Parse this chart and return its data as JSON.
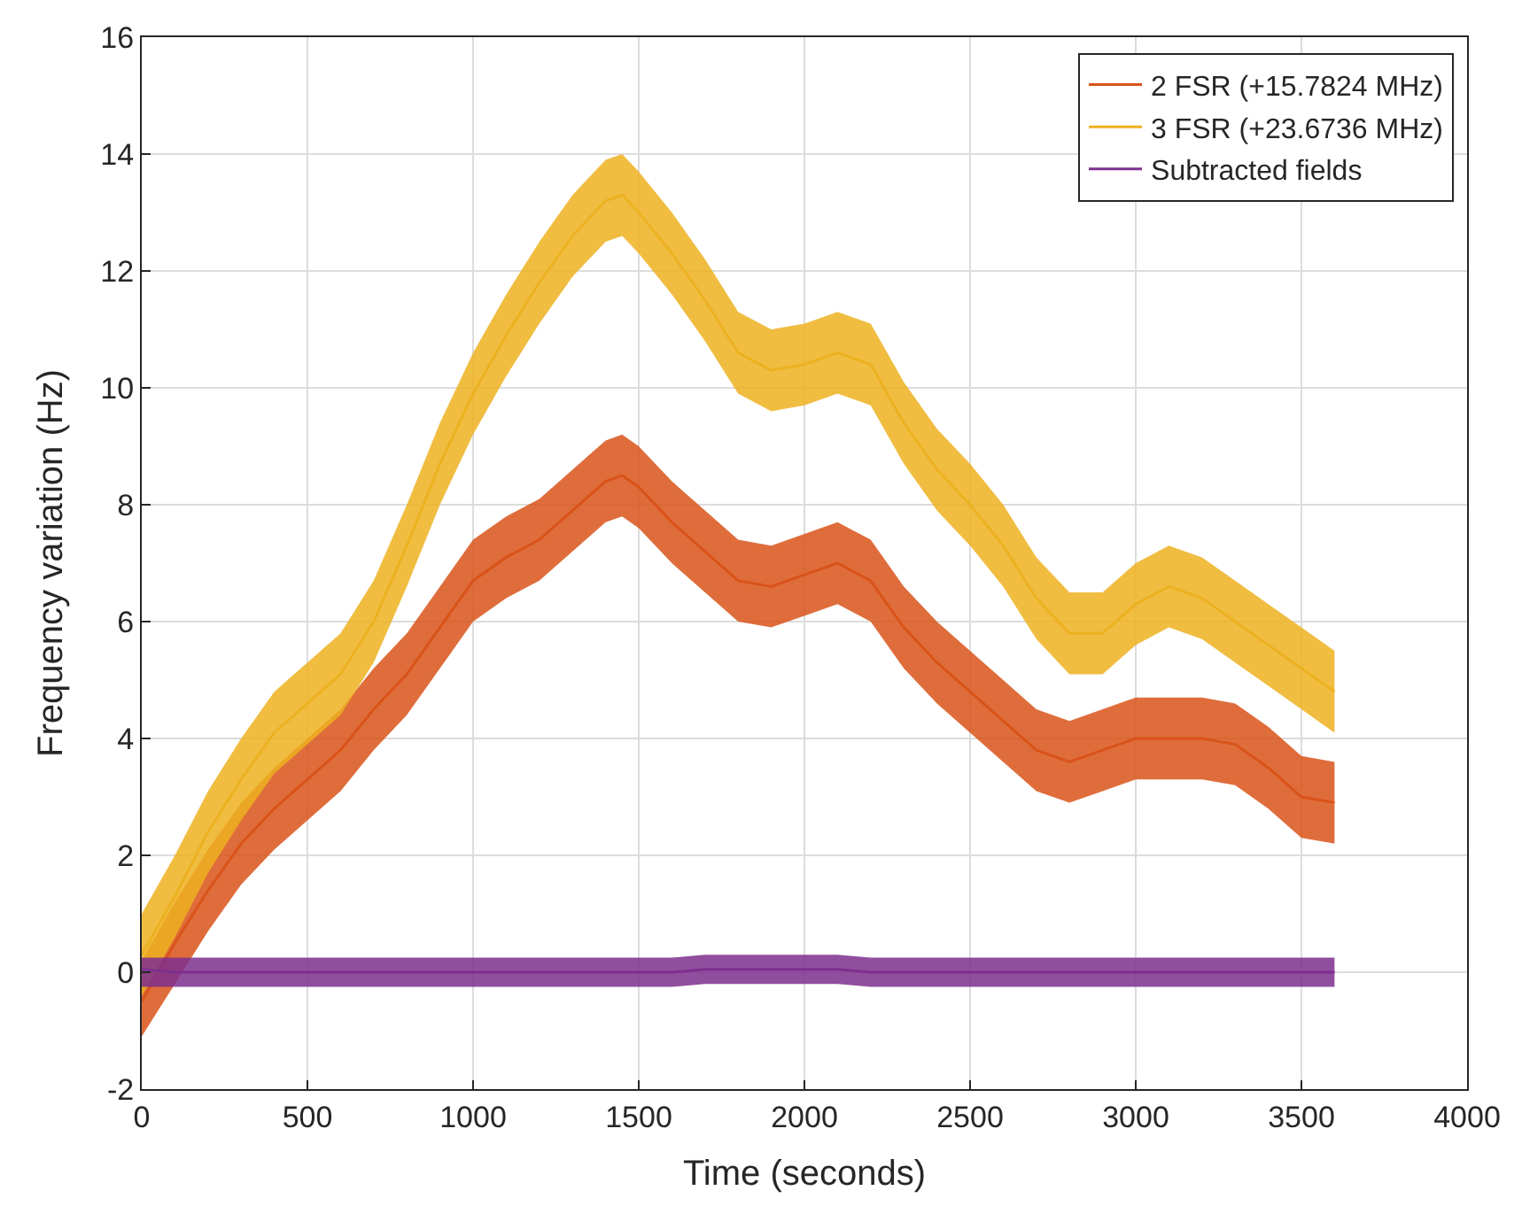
{
  "chart_data": {
    "type": "line",
    "xlabel": "Time (seconds)",
    "ylabel": "Frequency variation (Hz)",
    "x": [
      0,
      100,
      200,
      300,
      400,
      500,
      600,
      700,
      800,
      900,
      1000,
      1100,
      1200,
      1300,
      1400,
      1450,
      1500,
      1600,
      1700,
      1800,
      1900,
      2000,
      2100,
      2200,
      2300,
      2400,
      2500,
      2600,
      2700,
      2800,
      2900,
      3000,
      3100,
      3200,
      3300,
      3400,
      3500,
      3600
    ],
    "series": [
      {
        "name": "2 FSR (+15.7824 MHz)",
        "color": "#d95319",
        "values": [
          -0.5,
          0.5,
          1.4,
          2.2,
          2.8,
          3.3,
          3.8,
          4.5,
          5.1,
          5.9,
          6.7,
          7.1,
          7.4,
          7.9,
          8.4,
          8.5,
          8.3,
          7.7,
          7.2,
          6.7,
          6.6,
          6.8,
          7.0,
          6.7,
          5.9,
          5.3,
          4.8,
          4.3,
          3.8,
          3.6,
          3.8,
          4.0,
          4.0,
          4.0,
          3.9,
          3.5,
          3.0,
          2.9
        ],
        "lower": [
          -1.1,
          -0.2,
          0.7,
          1.5,
          2.1,
          2.6,
          3.1,
          3.8,
          4.4,
          5.2,
          6.0,
          6.4,
          6.7,
          7.2,
          7.7,
          7.8,
          7.6,
          7.0,
          6.5,
          6.0,
          5.9,
          6.1,
          6.3,
          6.0,
          5.2,
          4.6,
          4.1,
          3.6,
          3.1,
          2.9,
          3.1,
          3.3,
          3.3,
          3.3,
          3.2,
          2.8,
          2.3,
          2.2
        ],
        "upper": [
          0.2,
          1.2,
          2.1,
          2.9,
          3.5,
          4.0,
          4.5,
          5.2,
          5.8,
          6.6,
          7.4,
          7.8,
          8.1,
          8.6,
          9.1,
          9.2,
          9.0,
          8.4,
          7.9,
          7.4,
          7.3,
          7.5,
          7.7,
          7.4,
          6.6,
          6.0,
          5.5,
          5.0,
          4.5,
          4.3,
          4.5,
          4.7,
          4.7,
          4.7,
          4.6,
          4.2,
          3.7,
          3.6
        ]
      },
      {
        "name": "3 FSR (+23.6736 MHz)",
        "color": "#edb120",
        "values": [
          0.3,
          1.3,
          2.4,
          3.3,
          4.1,
          4.6,
          5.1,
          6.0,
          7.3,
          8.7,
          9.9,
          10.9,
          11.8,
          12.6,
          13.2,
          13.3,
          13.0,
          12.3,
          11.5,
          10.6,
          10.3,
          10.4,
          10.6,
          10.4,
          9.4,
          8.6,
          8.0,
          7.3,
          6.4,
          5.8,
          5.8,
          6.3,
          6.6,
          6.4,
          6.0,
          5.6,
          5.2,
          4.8
        ],
        "lower": [
          -0.4,
          0.6,
          1.7,
          2.6,
          3.4,
          3.9,
          4.4,
          5.3,
          6.6,
          8.0,
          9.2,
          10.2,
          11.1,
          11.9,
          12.5,
          12.6,
          12.3,
          11.6,
          10.8,
          9.9,
          9.6,
          9.7,
          9.9,
          9.7,
          8.7,
          7.9,
          7.3,
          6.6,
          5.7,
          5.1,
          5.1,
          5.6,
          5.9,
          5.7,
          5.3,
          4.9,
          4.5,
          4.1
        ],
        "upper": [
          1.0,
          2.0,
          3.1,
          4.0,
          4.8,
          5.3,
          5.8,
          6.7,
          8.0,
          9.4,
          10.6,
          11.6,
          12.5,
          13.3,
          13.9,
          14.0,
          13.7,
          13.0,
          12.2,
          11.3,
          11.0,
          11.1,
          11.3,
          11.1,
          10.1,
          9.3,
          8.7,
          8.0,
          7.1,
          6.5,
          6.5,
          7.0,
          7.3,
          7.1,
          6.7,
          6.3,
          5.9,
          5.5
        ]
      },
      {
        "name": "Subtracted fields",
        "color": "#7e2f8e",
        "values": [
          0.05,
          0,
          0,
          0,
          0,
          0,
          0,
          0,
          0,
          0,
          0,
          0,
          0,
          0,
          0,
          0,
          0,
          0,
          0.05,
          0.05,
          0.05,
          0.05,
          0.05,
          0,
          0,
          0,
          0,
          0,
          0,
          0,
          0,
          0,
          0,
          0,
          0,
          0,
          0,
          0
        ],
        "lower": [
          -0.25,
          -0.25,
          -0.25,
          -0.25,
          -0.25,
          -0.25,
          -0.25,
          -0.25,
          -0.25,
          -0.25,
          -0.25,
          -0.25,
          -0.25,
          -0.25,
          -0.25,
          -0.25,
          -0.25,
          -0.25,
          -0.2,
          -0.2,
          -0.2,
          -0.2,
          -0.2,
          -0.25,
          -0.25,
          -0.25,
          -0.25,
          -0.25,
          -0.25,
          -0.25,
          -0.25,
          -0.25,
          -0.25,
          -0.25,
          -0.25,
          -0.25,
          -0.25,
          -0.25
        ],
        "upper": [
          0.25,
          0.25,
          0.25,
          0.25,
          0.25,
          0.25,
          0.25,
          0.25,
          0.25,
          0.25,
          0.25,
          0.25,
          0.25,
          0.25,
          0.25,
          0.25,
          0.25,
          0.25,
          0.3,
          0.3,
          0.3,
          0.3,
          0.3,
          0.25,
          0.25,
          0.25,
          0.25,
          0.25,
          0.25,
          0.25,
          0.25,
          0.25,
          0.25,
          0.25,
          0.25,
          0.25,
          0.25,
          0.25
        ]
      }
    ],
    "xlim": [
      0,
      4000
    ],
    "xticks": [
      0,
      500,
      1000,
      1500,
      2000,
      2500,
      3000,
      3500,
      4000
    ],
    "ylim": [
      -2,
      16
    ],
    "yticks": [
      -2,
      0,
      2,
      4,
      6,
      8,
      10,
      12,
      14,
      16
    ],
    "grid": true,
    "legend": "top right"
  }
}
